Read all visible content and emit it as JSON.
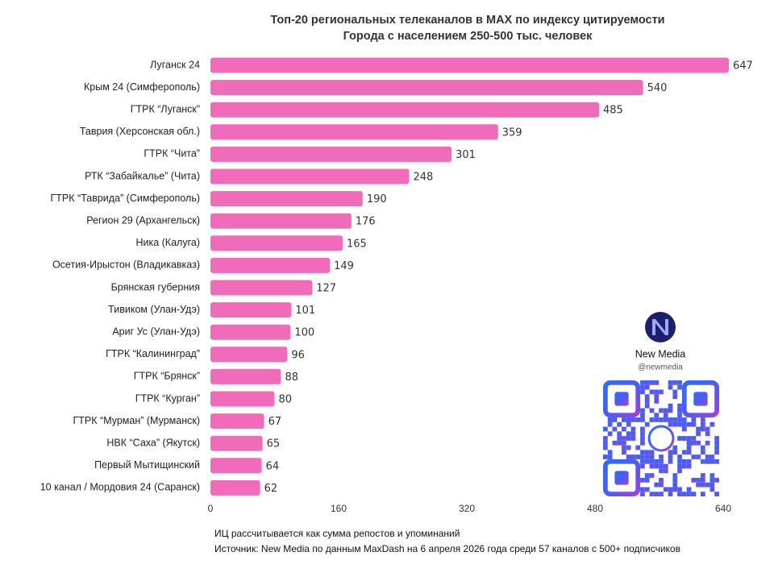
{
  "chart_data": {
    "type": "barh",
    "title": "Топ-20 региональных телеканалов в MAX по индексу цитируемости",
    "subtitle": "Города с населением 250-500 тыс. человек",
    "categories": [
      "Луганск 24",
      "Крым 24 (Симферополь)",
      "ГТРК “Луганск”",
      "Таврия (Херсонская обл.)",
      "ГТРК “Чита”",
      "РТК “Забайкалье” (Чита)",
      "ГТРК “Таврида” (Симферополь)",
      "Регион 29 (Архангельск)",
      "Ника (Калуга)",
      "Осетия-Ирыстон (Владикавказ)",
      "Брянская губерния",
      "Тивиком (Улан-Удэ)",
      "Ариг Ус (Улан-Удэ)",
      "ГТРК “Калининград”",
      "ГТРК “Брянск”",
      "ГТРК “Курган”",
      "ГТРК “Мурман” (Мурманск)",
      "НВК “Саха” (Якутск)",
      "Первый Мытищинский",
      "10 канал / Мордовия 24 (Саранск)"
    ],
    "values": [
      647,
      540,
      485,
      359,
      301,
      248,
      190,
      176,
      165,
      149,
      127,
      101,
      100,
      96,
      88,
      80,
      67,
      65,
      64,
      62
    ],
    "color": "#f06cba",
    "xlim": [
      0,
      640
    ],
    "xticks": [
      0,
      160,
      320,
      480,
      640
    ],
    "grid": false,
    "notes": [
      "ИЦ рассчитывается как сумма репостов и упоминаний",
      "Источник: New Media по данным MaxDash на 6 апреля 2026 года среди 57 каналов с 500+ подписчиков"
    ]
  },
  "brand": {
    "name": "New Media",
    "handle": "@newmedia"
  }
}
